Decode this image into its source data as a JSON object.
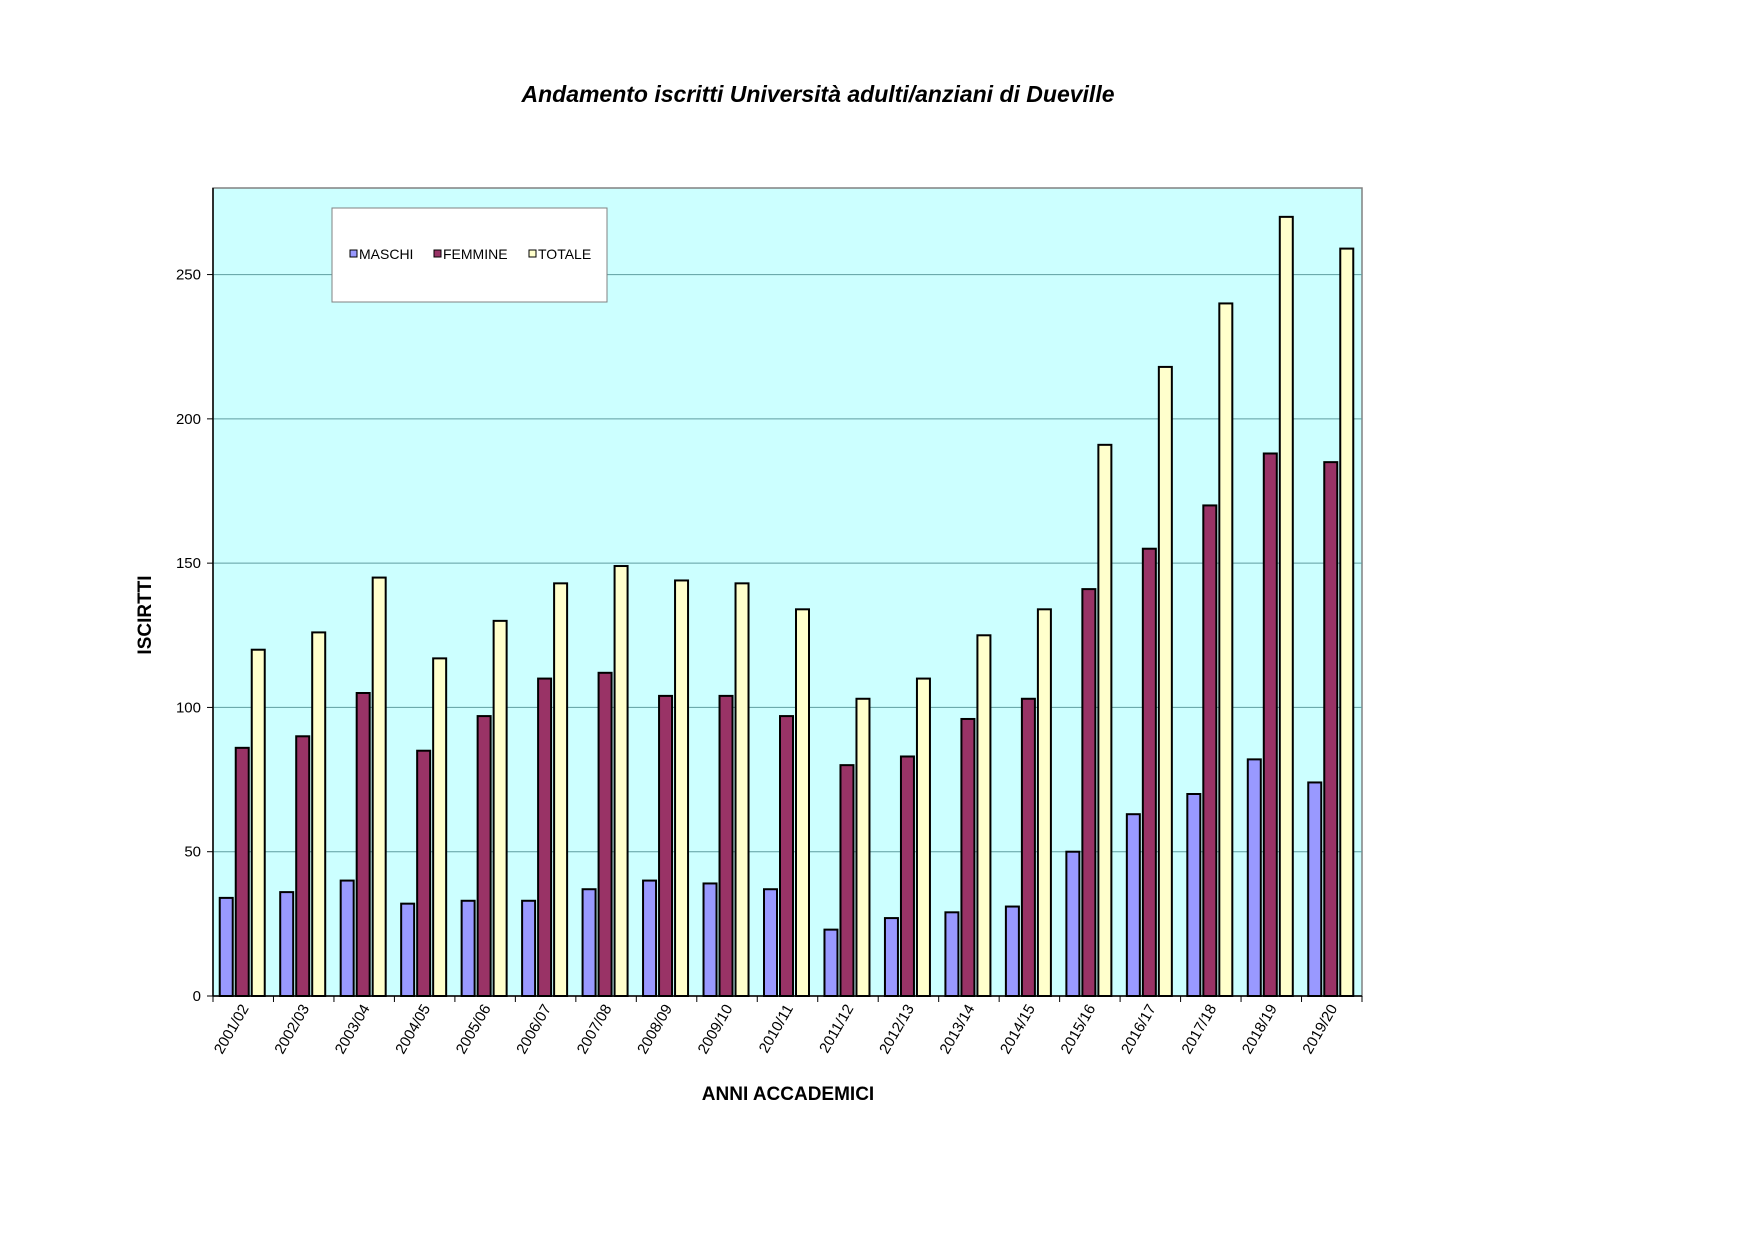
{
  "chart_data": {
    "type": "bar",
    "title": "Andamento iscritti Università adulti/anziani di Dueville",
    "xlabel": "ANNI ACCADEMICI",
    "ylabel": "ISCIRTTI",
    "ylim": [
      0,
      280
    ],
    "yticks": [
      0,
      50,
      100,
      150,
      200,
      250
    ],
    "grid": true,
    "legend_position": "top-left",
    "plot_background": "#ccffff",
    "categories": [
      "2001/02",
      "2002/03",
      "2003/04",
      "2004/05",
      "2005/06",
      "2006/07",
      "2007/08",
      "2008/09",
      "2009/10",
      "2010/11",
      "2011/12",
      "2012/13",
      "2013/14",
      "2014/15",
      "2015/16",
      "2016/17",
      "2017/18",
      "2018/19",
      "2019/20"
    ],
    "series": [
      {
        "name": "MASCHI",
        "color": "#9999ff",
        "values": [
          34,
          36,
          40,
          32,
          33,
          33,
          37,
          40,
          39,
          37,
          23,
          27,
          29,
          31,
          50,
          63,
          70,
          82,
          74
        ]
      },
      {
        "name": "FEMMINE",
        "color": "#993366",
        "values": [
          86,
          90,
          105,
          85,
          97,
          110,
          112,
          104,
          104,
          97,
          80,
          83,
          96,
          103,
          141,
          155,
          170,
          188,
          185
        ]
      },
      {
        "name": "TOTALE",
        "color": "#ffffcc",
        "values": [
          120,
          126,
          145,
          117,
          130,
          143,
          149,
          144,
          143,
          134,
          103,
          110,
          125,
          134,
          191,
          218,
          240,
          270,
          259
        ]
      }
    ]
  }
}
